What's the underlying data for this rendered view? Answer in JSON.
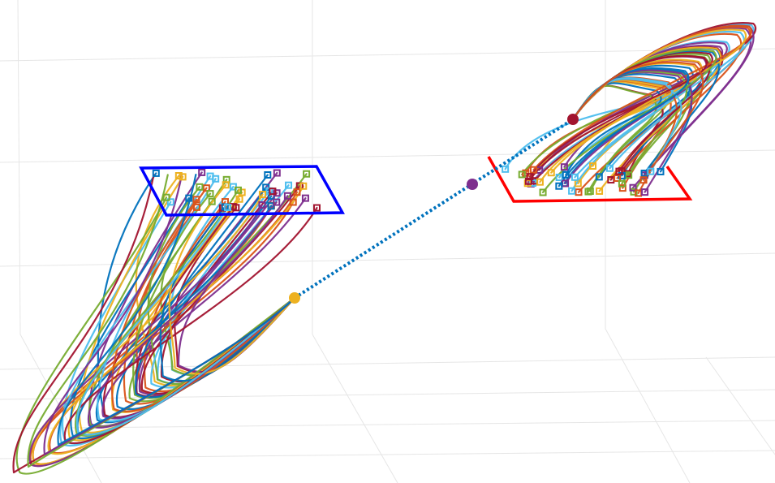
{
  "chart_data": {
    "type": "scatter",
    "title": "",
    "xlabel": "",
    "ylabel": "",
    "grid": true,
    "series_colors": [
      "#0072BD",
      "#D95319",
      "#EDB120",
      "#7E2F8E",
      "#77AC30",
      "#4DBEEE",
      "#A2142F"
    ],
    "left_anchor_color": "#EDB120",
    "middle_anchor_color": "#7E2F8E",
    "right_anchor_color": "#A2142F",
    "connector_color": "#0072BD",
    "left_region_color": "#0000FF",
    "right_region_color": "#FF0000",
    "left_cluster_count": 48,
    "right_cluster_count": 48
  }
}
